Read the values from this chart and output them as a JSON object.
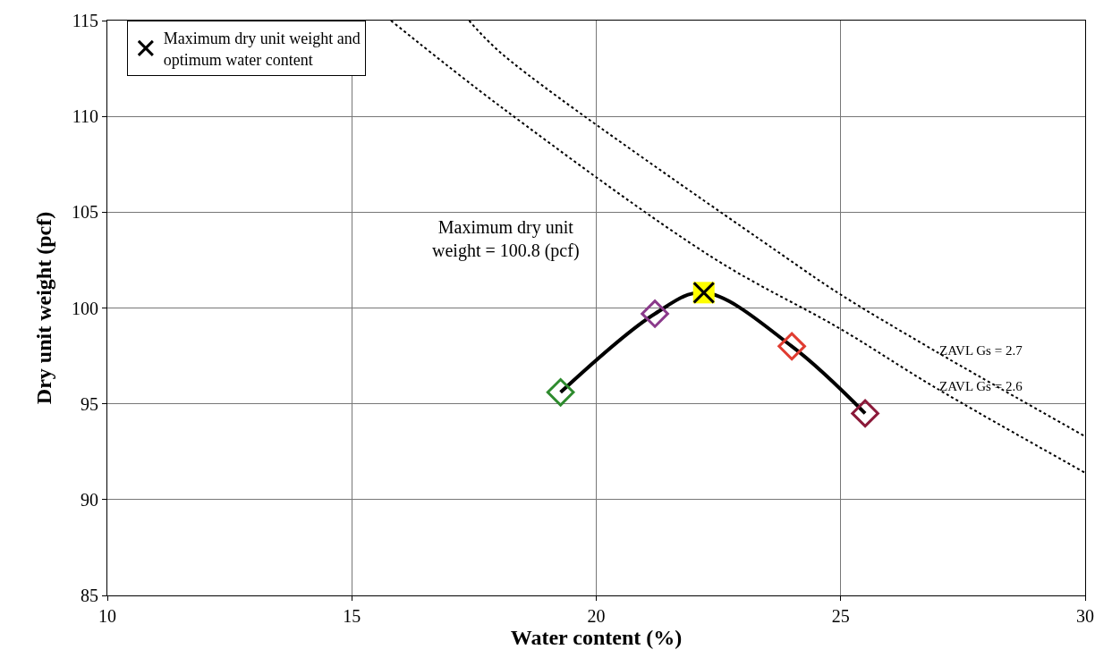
{
  "chart_data": {
    "type": "scatter",
    "xlabel": "Water content (%)",
    "ylabel": "Dry unit weight (pcf)",
    "xlim": [
      10,
      30
    ],
    "xticks": [
      10,
      15,
      20,
      25,
      30
    ],
    "ylim": [
      85,
      115
    ],
    "yticks": [
      85,
      90,
      95,
      100,
      105,
      110,
      115
    ],
    "grid": true,
    "legend": "top left",
    "annotations": [
      "Maximum dry unit weight = 100.8 (pcf)"
    ],
    "series": [
      {
        "type": "line",
        "color": "#000000",
        "line_style": "solid",
        "marker": "none",
        "x": [
          19.27,
          21.2,
          22.2,
          24.0,
          25.5
        ],
        "values": [
          95.6,
          99.7,
          100.8,
          98.0,
          94.5
        ]
      },
      {
        "marker": "diamond",
        "colors": [
          "#2e8b2e",
          "#8b3a8b",
          "#e03c31",
          "#8b1a3a"
        ],
        "x": [
          19.27,
          21.2,
          24.0,
          25.5
        ],
        "values": [
          95.6,
          99.7,
          98.0,
          94.5
        ]
      },
      {
        "name": "Maximum dry unit weight and optimum water content",
        "marker": "cross",
        "color": "#000000",
        "x": [
          22.2
        ],
        "values": [
          100.8
        ]
      },
      {
        "type": "line",
        "name": "ZAVL Gs = 2.7",
        "color": "#000000",
        "line_style": "dotted",
        "marker": "none",
        "x": [
          17.4,
          18.1,
          23.9,
          25.0,
          26.9,
          30
        ],
        "values": [
          115,
          113.2,
          102.6,
          100.7,
          97.8,
          93.3
        ]
      },
      {
        "type": "line",
        "name": "ZAVL Gs = 2.6",
        "color": "#000000",
        "line_style": "dotted",
        "marker": "none",
        "x": [
          15.8,
          18.1,
          22.4,
          25.0,
          26.9,
          30
        ],
        "values": [
          115,
          110.4,
          102.6,
          98.9,
          95.9,
          91.4
        ]
      }
    ]
  }
}
